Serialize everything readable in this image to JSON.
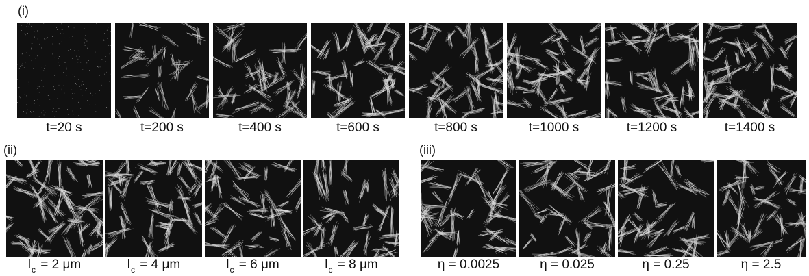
{
  "panels": {
    "i": {
      "label": "(i)",
      "frames": [
        {
          "caption": "t=20 s",
          "density": 0.02
        },
        {
          "caption": "t=200 s",
          "density": 0.35
        },
        {
          "caption": "t=400 s",
          "density": 0.6
        },
        {
          "caption": "t=600 s",
          "density": 0.75
        },
        {
          "caption": "t=800 s",
          "density": 0.8
        },
        {
          "caption": "t=1000 s",
          "density": 0.82
        },
        {
          "caption": "t=1200 s",
          "density": 0.83
        },
        {
          "caption": "t=1400 s",
          "density": 0.84
        }
      ]
    },
    "ii": {
      "label": "(ii)",
      "frames": [
        {
          "caption_prefix": "l",
          "caption_sub": "c",
          "caption_rest": " = 2 μm",
          "density": 0.9
        },
        {
          "caption_prefix": "l",
          "caption_sub": "c",
          "caption_rest": " = 4 μm",
          "density": 0.75
        },
        {
          "caption_prefix": "l",
          "caption_sub": "c",
          "caption_rest": " = 6 μm",
          "density": 0.7
        },
        {
          "caption_prefix": "l",
          "caption_sub": "c",
          "caption_rest": " = 8 μm",
          "density": 0.65
        }
      ]
    },
    "iii": {
      "label": "(iii)",
      "frames": [
        {
          "caption": "η = 0.0025",
          "density": 0.7
        },
        {
          "caption": "η = 0.025",
          "density": 0.7
        },
        {
          "caption": "η = 0.25",
          "density": 0.68
        },
        {
          "caption": "η = 2.5",
          "density": 0.65
        }
      ]
    }
  },
  "colors": {
    "tile_background": "#111111",
    "filament": "#d9d9d9",
    "text": "#111111"
  }
}
